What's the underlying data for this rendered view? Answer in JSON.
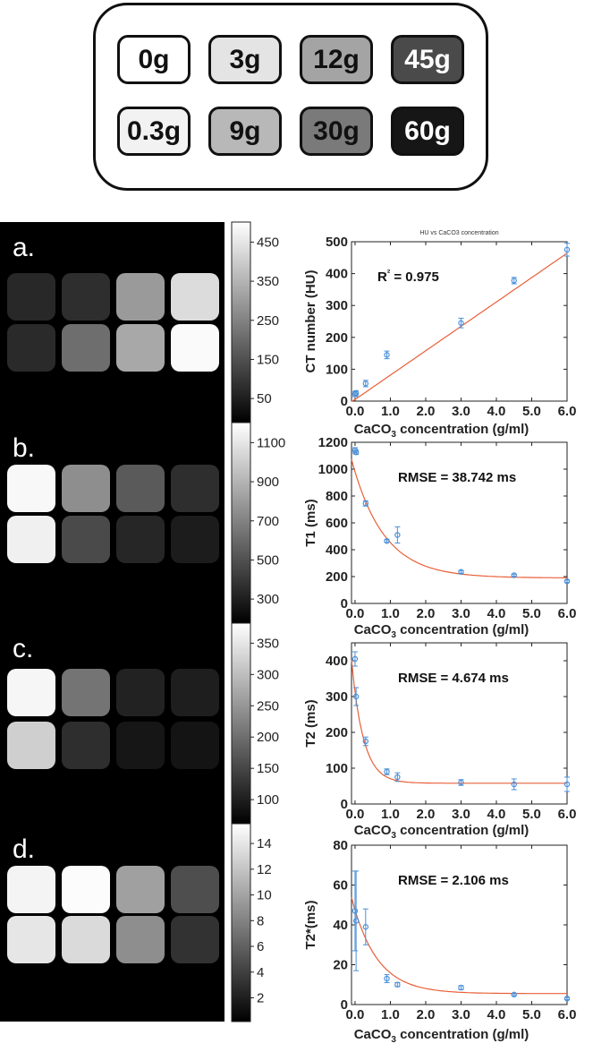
{
  "phantom": {
    "chips": [
      {
        "label": "0g",
        "fill": "#ffffff",
        "text": "#111111"
      },
      {
        "label": "3g",
        "fill": "#e4e4e4",
        "text": "#111111"
      },
      {
        "label": "12g",
        "fill": "#a4a4a4",
        "text": "#111111"
      },
      {
        "label": "45g",
        "fill": "#4a4a4a",
        "text": "#ffffff"
      },
      {
        "label": "0.3g",
        "fill": "#f2f2f2",
        "text": "#111111"
      },
      {
        "label": "9g",
        "fill": "#b8b8b8",
        "text": "#111111"
      },
      {
        "label": "30g",
        "fill": "#7a7a7a",
        "text": "#111111"
      },
      {
        "label": "60g",
        "fill": "#161616",
        "text": "#ffffff"
      }
    ]
  },
  "panels": [
    {
      "letter": "a.",
      "colorbar_ticks": [
        "450",
        "350",
        "250",
        "150",
        "50"
      ],
      "squares": [
        [
          "#282828",
          "#2e2e2e",
          "#9a9a9a",
          "#dcdcdc"
        ],
        [
          "#2a2a2a",
          "#6e6e6e",
          "#a8a8a8",
          "#fafafa"
        ]
      ]
    },
    {
      "letter": "b.",
      "colorbar_ticks": [
        "1100",
        "900",
        "700",
        "500",
        "300"
      ],
      "squares": [
        [
          "#f8f8f8",
          "#8e8e8e",
          "#5a5a5a",
          "#2e2e2e"
        ],
        [
          "#f0f0f0",
          "#4a4a4a",
          "#262626",
          "#1c1c1c"
        ]
      ]
    },
    {
      "letter": "c.",
      "colorbar_ticks": [
        "350",
        "300",
        "250",
        "200",
        "150",
        "100"
      ],
      "squares": [
        [
          "#f6f6f6",
          "#747474",
          "#222222",
          "#1e1e1e"
        ],
        [
          "#cfcfcf",
          "#2e2e2e",
          "#161616",
          "#141414"
        ]
      ]
    },
    {
      "letter": "d.",
      "colorbar_ticks": [
        "14",
        "12",
        "10",
        "8",
        "6",
        "4",
        "2"
      ],
      "squares": [
        [
          "#f4f4f4",
          "#fcfcfc",
          "#a0a0a0",
          "#4e4e4e"
        ],
        [
          "#e6e6e6",
          "#dadada",
          "#8e8e8e",
          "#323232"
        ]
      ]
    }
  ],
  "chart_data": [
    {
      "type": "scatter",
      "title": "HU vs CaCO3 concentration",
      "xlabel": "CaCO3 concentration (g/ml)",
      "ylabel": "CT number (HU)",
      "xlim": [
        -0.1,
        6.0
      ],
      "ylim": [
        0,
        500
      ],
      "xticks": [
        "0.0",
        "1.0",
        "2.0",
        "3.0",
        "4.0",
        "5.0",
        "6.0"
      ],
      "yticks": [
        "0",
        "100",
        "200",
        "300",
        "400",
        "500"
      ],
      "annotation": "R² = 0.975",
      "x": [
        0.0,
        0.03,
        0.3,
        0.9,
        3.0,
        4.5,
        6.0
      ],
      "y": [
        22,
        25,
        55,
        145,
        245,
        378,
        475
      ],
      "yerr": [
        8,
        8,
        10,
        12,
        15,
        10,
        20
      ],
      "fit": {
        "kind": "linear",
        "slope": 76.5,
        "intercept": 5
      }
    },
    {
      "type": "scatter",
      "title": "",
      "xlabel": "CaCO3 concentration (g/ml)",
      "ylabel": "T1 (ms)",
      "xlim": [
        -0.1,
        6.0
      ],
      "ylim": [
        0,
        1200
      ],
      "xticks": [
        "0.0",
        "1.0",
        "2.0",
        "3.0",
        "4.0",
        "5.0",
        "6.0"
      ],
      "yticks": [
        "0",
        "200",
        "400",
        "600",
        "800",
        "1000",
        "1200"
      ],
      "annotation": "RMSE = 38.742 ms",
      "x": [
        0.0,
        0.03,
        0.3,
        0.9,
        1.2,
        3.0,
        4.5,
        6.0
      ],
      "y": [
        1140,
        1125,
        745,
        465,
        510,
        235,
        210,
        165
      ],
      "yerr": [
        20,
        15,
        20,
        10,
        60,
        10,
        8,
        8
      ],
      "fit": {
        "kind": "exp",
        "a": 790,
        "k": 1.1,
        "c": 190
      }
    },
    {
      "type": "scatter",
      "title": "",
      "xlabel": "CaCO3 concentration (g/ml)",
      "ylabel": "T2 (ms)",
      "xlim": [
        -0.1,
        6.0
      ],
      "ylim": [
        0,
        450
      ],
      "xticks": [
        "0.0",
        "1.0",
        "2.0",
        "3.0",
        "4.0",
        "5.0",
        "6.0"
      ],
      "yticks": [
        "0",
        "100",
        "200",
        "300",
        "400"
      ],
      "annotation": "RMSE = 4.674 ms",
      "x": [
        0.0,
        0.03,
        0.3,
        0.9,
        1.2,
        3.0,
        4.5,
        6.0
      ],
      "y": [
        405,
        300,
        175,
        90,
        75,
        60,
        55,
        55
      ],
      "yerr": [
        20,
        25,
        12,
        8,
        12,
        8,
        15,
        20
      ],
      "fit": {
        "kind": "exp",
        "a": 255,
        "k": 3.0,
        "c": 58
      }
    },
    {
      "type": "scatter",
      "title": "",
      "xlabel": "CaCO3 concentration (g/ml)",
      "ylabel": "T2*(ms)",
      "xlim": [
        -0.1,
        6.0
      ],
      "ylim": [
        0,
        80
      ],
      "xticks": [
        "0.0",
        "1.0",
        "2.0",
        "3.0",
        "4.0",
        "5.0",
        "6.0"
      ],
      "yticks": [
        "0",
        "20",
        "40",
        "60",
        "80"
      ],
      "annotation": "RMSE = 2.106 ms",
      "x": [
        0.0,
        0.03,
        0.3,
        0.9,
        1.2,
        3.0,
        4.5,
        6.0
      ],
      "y": [
        47,
        42,
        39,
        13,
        10,
        8.5,
        5,
        3
      ],
      "yerr": [
        20,
        25,
        9,
        2,
        1,
        1,
        0.5,
        0.5
      ],
      "fit": {
        "kind": "exp",
        "a": 42,
        "k": 1.4,
        "c": 5.5
      }
    }
  ]
}
